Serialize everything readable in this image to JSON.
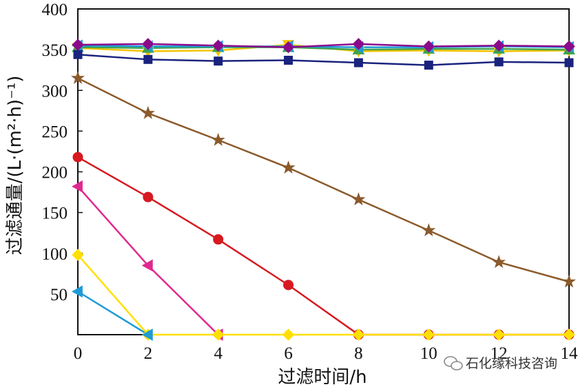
{
  "chart_data": {
    "type": "line",
    "xlabel": "过滤时间/h",
    "ylabel": "过滤通量/(L·(m²·h)⁻¹)",
    "xlim": [
      0,
      14
    ],
    "ylim": [
      0,
      400
    ],
    "xticks": [
      0,
      2,
      4,
      6,
      8,
      10,
      12,
      14
    ],
    "yticks": [
      0,
      50,
      100,
      150,
      200,
      250,
      300,
      350,
      400
    ],
    "x": [
      0,
      2,
      4,
      6,
      8,
      10,
      12,
      14
    ],
    "grid": false,
    "series": [
      {
        "color": "#f3c400",
        "marker": "triangle-down",
        "values": [
          352,
          348,
          349,
          356,
          348,
          349,
          348,
          349
        ]
      },
      {
        "color": "#3fa34d",
        "marker": "triangle-up",
        "values": [
          353,
          352,
          353,
          353,
          350,
          351,
          351,
          350
        ]
      },
      {
        "color": "#1e9bd7",
        "marker": "triangle-left",
        "values": [
          355,
          354,
          354,
          354,
          353,
          353,
          354,
          353
        ]
      },
      {
        "color": "#8b0a8b",
        "marker": "diamond",
        "values": [
          356,
          357,
          355,
          353,
          357,
          354,
          355,
          354
        ]
      },
      {
        "color": "#1a237e",
        "marker": "square",
        "values": [
          344,
          338,
          336,
          337,
          334,
          331,
          335,
          334
        ]
      },
      {
        "color": "#8b5a2b",
        "marker": "star",
        "values": [
          315,
          272,
          239,
          205,
          166,
          128,
          89,
          65
        ]
      },
      {
        "color": "#d71920",
        "marker": "circle",
        "values": [
          218,
          169,
          117,
          61,
          0,
          0,
          0,
          0
        ]
      },
      {
        "color": "#e0288f",
        "marker": "triangle-left",
        "values": [
          182,
          85,
          0,
          null,
          null,
          null,
          null,
          null
        ]
      },
      {
        "color": "#ffe000",
        "marker": "diamond",
        "values": [
          98,
          0,
          0,
          0,
          0,
          0,
          0,
          0
        ]
      },
      {
        "color": "#1e9bd7",
        "marker": "triangle-left",
        "values": [
          53,
          0,
          null,
          null,
          null,
          null,
          null,
          null
        ]
      }
    ]
  },
  "watermark": {
    "text": "石化缘科技咨询",
    "icon": "wechat-icon"
  }
}
